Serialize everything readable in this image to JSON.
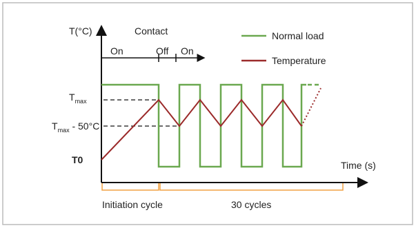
{
  "axes": {
    "y_label": "T(°C)",
    "x_label": "Time (s)"
  },
  "contact": {
    "title": "Contact",
    "phases": [
      "On",
      "Off",
      "On"
    ]
  },
  "legend": [
    "Normal load",
    "Temperature"
  ],
  "levels": {
    "tmax": {
      "base": "T",
      "sub": "max"
    },
    "tmax_minus": {
      "base": "T",
      "sub": "max",
      "rest": " - 50°C"
    },
    "t0": "T0"
  },
  "brackets": [
    "Initiation cycle",
    "30 cycles"
  ]
}
